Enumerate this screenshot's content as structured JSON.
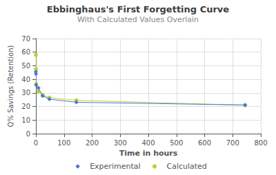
{
  "chart_data": {
    "type": "line",
    "title": "Ebbinghaus's First Forgetting Curve",
    "subtitle": "With Calculated Values Overlain",
    "x_label": "Time in hours",
    "y_label": "Q% Savings (Retention)",
    "xlim": [
      0,
      800
    ],
    "ylim": [
      0,
      70
    ],
    "xticks": [
      0,
      100,
      200,
      300,
      400,
      500,
      600,
      700,
      800
    ],
    "yticks": [
      0,
      10,
      20,
      30,
      40,
      50,
      60,
      70
    ],
    "grid": true,
    "legend": "bottom",
    "x": [
      0.017,
      0.33,
      1,
      9,
      24,
      48,
      144,
      744
    ],
    "series": [
      {
        "name": "Experimental",
        "marker": "diamond",
        "values": [
          45.5,
          44.0,
          35.8,
          33.7,
          27.8,
          25.4,
          23.1,
          21.1
        ]
      },
      {
        "name": "Calculated",
        "marker": "circle",
        "values": [
          58.0,
          47.5,
          36.5,
          31.0,
          28.5,
          26.5,
          24.5,
          21.0
        ]
      }
    ]
  }
}
